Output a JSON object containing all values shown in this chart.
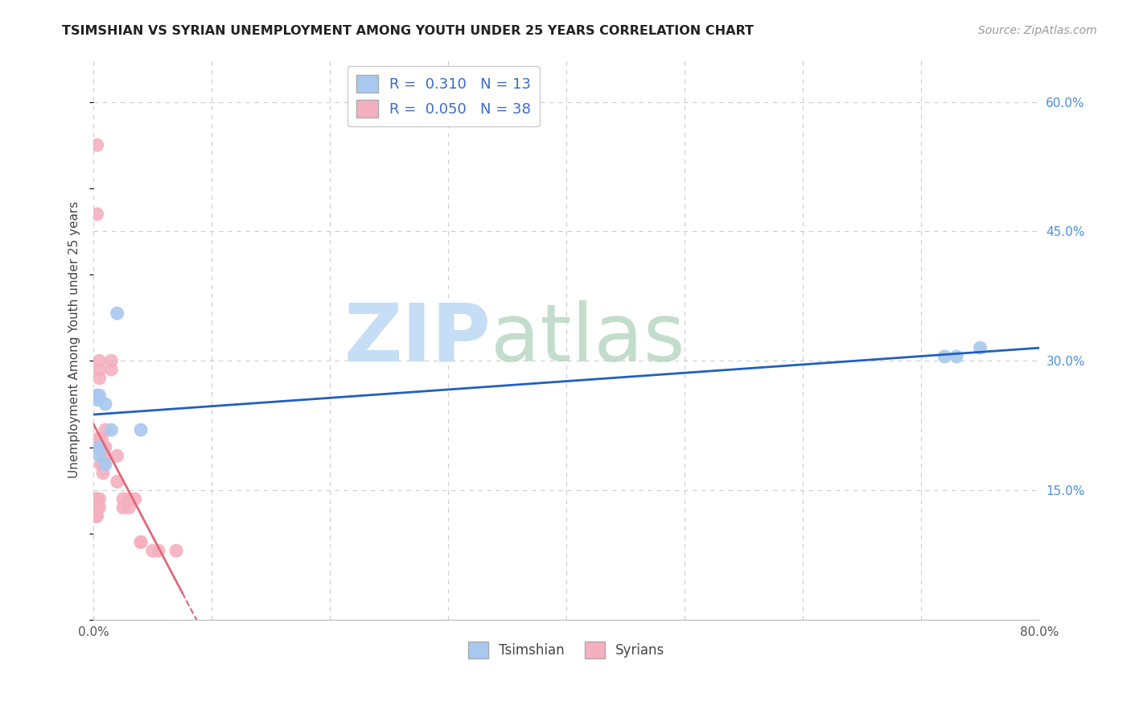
{
  "title": "TSIMSHIAN VS SYRIAN UNEMPLOYMENT AMONG YOUTH UNDER 25 YEARS CORRELATION CHART",
  "source": "Source: ZipAtlas.com",
  "ylabel": "Unemployment Among Youth under 25 years",
  "xlim": [
    0.0,
    0.8
  ],
  "ylim": [
    0.0,
    0.65
  ],
  "x_ticks": [
    0.0,
    0.1,
    0.2,
    0.3,
    0.4,
    0.5,
    0.6,
    0.7,
    0.8
  ],
  "y_ticks_right": [
    0.0,
    0.15,
    0.3,
    0.45,
    0.6
  ],
  "legend": {
    "tsimshian_R": "0.310",
    "tsimshian_N": "13",
    "syrian_R": "0.050",
    "syrian_N": "38"
  },
  "tsimshian_color": "#a8c8f0",
  "syrian_color": "#f5b0c0",
  "tsimshian_line_color": "#2060c0",
  "syrian_line_color": "#e06878",
  "background_color": "#ffffff",
  "grid_color": "#cccccc",
  "tsimshian_x": [
    0.003,
    0.003,
    0.005,
    0.005,
    0.005,
    0.01,
    0.01,
    0.015,
    0.02,
    0.04,
    0.72,
    0.73,
    0.75
  ],
  "tsimshian_y": [
    0.255,
    0.26,
    0.26,
    0.2,
    0.19,
    0.25,
    0.18,
    0.22,
    0.355,
    0.22,
    0.305,
    0.305,
    0.315
  ],
  "syrian_x": [
    0.002,
    0.002,
    0.002,
    0.002,
    0.003,
    0.003,
    0.003,
    0.003,
    0.003,
    0.003,
    0.004,
    0.005,
    0.005,
    0.005,
    0.005,
    0.005,
    0.006,
    0.007,
    0.007,
    0.008,
    0.008,
    0.01,
    0.01,
    0.01,
    0.015,
    0.015,
    0.02,
    0.02,
    0.025,
    0.025,
    0.03,
    0.03,
    0.035,
    0.04,
    0.04,
    0.05,
    0.055,
    0.07
  ],
  "syrian_y": [
    0.13,
    0.13,
    0.12,
    0.14,
    0.14,
    0.13,
    0.12,
    0.55,
    0.47,
    0.2,
    0.21,
    0.3,
    0.29,
    0.28,
    0.14,
    0.13,
    0.18,
    0.21,
    0.2,
    0.18,
    0.17,
    0.22,
    0.2,
    0.19,
    0.3,
    0.29,
    0.19,
    0.16,
    0.14,
    0.13,
    0.14,
    0.13,
    0.14,
    0.09,
    0.09,
    0.08,
    0.08,
    0.08
  ]
}
